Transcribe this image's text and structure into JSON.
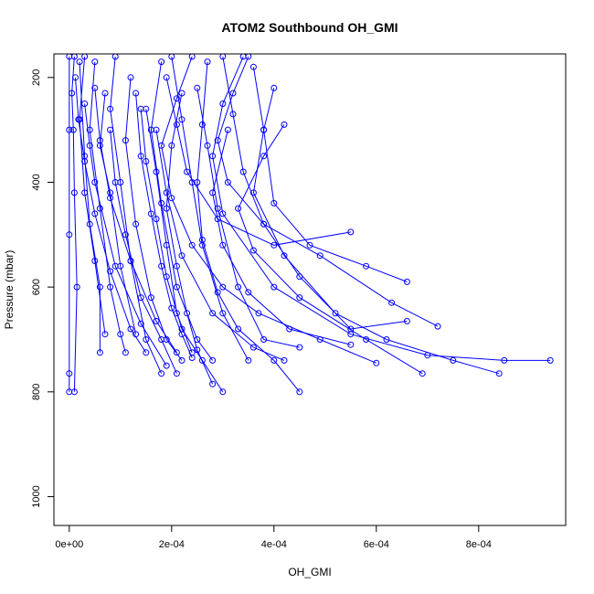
{
  "chart_data": {
    "type": "line",
    "title": "ATOM2 Southbound OH_GMI",
    "xlabel": "OH_GMI",
    "ylabel": "Pressure (mbar)",
    "xlim": [
      -3e-05,
      0.00097
    ],
    "ylim": [
      1055,
      155
    ],
    "y_reversed": true,
    "x_ticks": [
      {
        "value": 0.0,
        "label": "0e+00"
      },
      {
        "value": 0.0002,
        "label": "2e-04"
      },
      {
        "value": 0.0004,
        "label": "4e-04"
      },
      {
        "value": 0.0006,
        "label": "6e-04"
      },
      {
        "value": 0.0008,
        "label": "8e-04"
      }
    ],
    "y_ticks": [
      {
        "value": 200,
        "label": "200"
      },
      {
        "value": 400,
        "label": "400"
      },
      {
        "value": 600,
        "label": "600"
      },
      {
        "value": 800,
        "label": "800"
      },
      {
        "value": 1000,
        "label": "1000"
      }
    ],
    "series_color": "#0000ff",
    "marker": "open-circle",
    "series": [
      {
        "points": [
          [
            0.0,
            160
          ],
          [
            0.0,
            300
          ],
          [
            0.0,
            500
          ],
          [
            0.0,
            765
          ],
          [
            0.0,
            800
          ]
        ]
      },
      {
        "points": [
          [
            1e-05,
            160
          ],
          [
            5e-06,
            230
          ],
          [
            8e-06,
            300
          ],
          [
            1e-05,
            420
          ],
          [
            1.5e-05,
            600
          ],
          [
            1e-05,
            800
          ]
        ]
      },
      {
        "points": [
          [
            3e-05,
            160
          ],
          [
            2e-05,
            280
          ],
          [
            3e-05,
            420
          ],
          [
            5e-05,
            550
          ],
          [
            7e-05,
            690
          ]
        ]
      },
      {
        "points": [
          [
            5e-05,
            170
          ],
          [
            4e-05,
            300
          ],
          [
            6e-05,
            450
          ],
          [
            8e-05,
            600
          ],
          [
            0.0001,
            690
          ],
          [
            0.00011,
            725
          ]
        ]
      },
      {
        "points": [
          [
            2e-05,
            170
          ],
          [
            3e-05,
            350
          ],
          [
            4e-05,
            480
          ],
          [
            6e-05,
            600
          ],
          [
            6e-05,
            725
          ]
        ]
      },
      {
        "points": [
          [
            7e-05,
            230
          ],
          [
            6e-05,
            330
          ],
          [
            8e-05,
            420
          ],
          [
            0.0001,
            560
          ],
          [
            0.00013,
            690
          ]
        ]
      },
      {
        "points": [
          [
            9e-05,
            160
          ],
          [
            8e-05,
            260
          ],
          [
            0.0001,
            400
          ],
          [
            0.00012,
            550
          ],
          [
            0.00015,
            700
          ],
          [
            0.00018,
            765
          ]
        ]
      },
      {
        "points": [
          [
            0.00012,
            200
          ],
          [
            0.00011,
            320
          ],
          [
            0.00013,
            480
          ],
          [
            0.00016,
            620
          ],
          [
            0.00019,
            700
          ],
          [
            0.00022,
            740
          ]
        ]
      },
      {
        "points": [
          [
            0.00015,
            260
          ],
          [
            0.00017,
            380
          ],
          [
            0.00019,
            520
          ],
          [
            0.00021,
            650
          ],
          [
            0.00024,
            725
          ]
        ]
      },
      {
        "points": [
          [
            0.00018,
            170
          ],
          [
            0.00016,
            300
          ],
          [
            0.00018,
            440
          ],
          [
            0.00021,
            600
          ],
          [
            0.00025,
            700
          ],
          [
            0.00028,
            740
          ]
        ]
      },
      {
        "points": [
          [
            0.0002,
            160
          ],
          [
            0.00022,
            280
          ],
          [
            0.00024,
            400
          ],
          [
            0.00026,
            520
          ],
          [
            0.0003,
            650
          ],
          [
            0.00035,
            740
          ]
        ]
      },
      {
        "points": [
          [
            0.00025,
            220
          ],
          [
            0.00027,
            330
          ],
          [
            0.00029,
            450
          ],
          [
            0.00033,
            600
          ],
          [
            0.00038,
            700
          ],
          [
            0.00045,
            715
          ]
        ]
      },
      {
        "points": [
          [
            0.0003,
            160
          ],
          [
            0.00032,
            270
          ],
          [
            0.00034,
            380
          ],
          [
            0.00038,
            480
          ],
          [
            0.00045,
            580
          ],
          [
            0.00055,
            680
          ],
          [
            0.00066,
            665
          ]
        ]
      },
      {
        "points": [
          [
            0.00036,
            180
          ],
          [
            0.00038,
            300
          ],
          [
            0.0004,
            440
          ],
          [
            0.00047,
            520
          ],
          [
            0.00058,
            560
          ],
          [
            0.00066,
            590
          ]
        ]
      },
      {
        "points": [
          [
            0.00034,
            160
          ],
          [
            0.0003,
            250
          ],
          [
            0.00028,
            350
          ],
          [
            0.0003,
            460
          ],
          [
            0.0004,
            600
          ],
          [
            0.00055,
            690
          ],
          [
            0.0007,
            730
          ],
          [
            0.00085,
            740
          ],
          [
            0.00094,
            740
          ]
        ]
      },
      {
        "points": [
          [
            0.0004,
            220
          ],
          [
            0.00038,
            300
          ],
          [
            0.00036,
            420
          ],
          [
            0.00042,
            540
          ],
          [
            0.00052,
            650
          ],
          [
            0.00062,
            700
          ],
          [
            0.00075,
            740
          ],
          [
            0.00084,
            765
          ]
        ]
      },
      {
        "points": [
          [
            0.00022,
            230
          ],
          [
            0.0002,
            330
          ],
          [
            0.00019,
            450
          ],
          [
            0.00021,
            560
          ],
          [
            0.00023,
            650
          ],
          [
            0.00025,
            720
          ],
          [
            0.00028,
            785
          ]
        ]
      },
      {
        "points": [
          [
            0.00014,
            260
          ],
          [
            0.00015,
            360
          ],
          [
            0.00017,
            470
          ],
          [
            0.00019,
            580
          ],
          [
            0.00022,
            680
          ],
          [
            0.00026,
            740
          ],
          [
            0.0003,
            800
          ]
        ]
      },
      {
        "points": [
          [
            8e-05,
            300
          ],
          [
            9e-05,
            400
          ],
          [
            0.00011,
            500
          ],
          [
            0.00014,
            620
          ],
          [
            0.00018,
            700
          ],
          [
            0.00021,
            765
          ]
        ]
      },
      {
        "points": [
          [
            0.00027,
            170
          ],
          [
            0.00026,
            290
          ],
          [
            0.00025,
            400
          ],
          [
            0.00026,
            510
          ],
          [
            0.00029,
            610
          ],
          [
            0.00033,
            680
          ],
          [
            0.0004,
            740
          ],
          [
            0.00045,
            800
          ]
        ]
      },
      {
        "points": [
          [
            0.00017,
            300
          ],
          [
            0.00019,
            420
          ],
          [
            0.00022,
            540
          ],
          [
            0.00028,
            650
          ],
          [
            0.00036,
            715
          ],
          [
            0.00042,
            740
          ]
        ]
      },
      {
        "points": [
          [
            0.00042,
            290
          ],
          [
            0.00038,
            350
          ],
          [
            0.00033,
            450
          ],
          [
            0.00036,
            530
          ],
          [
            0.00045,
            620
          ],
          [
            0.00058,
            700
          ],
          [
            0.00069,
            765
          ]
        ]
      },
      {
        "points": [
          [
            5e-05,
            220
          ],
          [
            6e-05,
            320
          ],
          [
            8e-05,
            430
          ],
          [
            0.00012,
            550
          ],
          [
            0.00017,
            665
          ],
          [
            0.00021,
            725
          ]
        ]
      },
      {
        "points": [
          [
            3e-05,
            250
          ],
          [
            4e-05,
            330
          ],
          [
            5e-05,
            400
          ],
          [
            9e-05,
            560
          ],
          [
            0.00014,
            670
          ],
          [
            0.00019,
            750
          ]
        ]
      },
      {
        "points": [
          [
            0.00024,
            160
          ],
          [
            0.00021,
            240
          ],
          [
            0.00018,
            330
          ],
          [
            0.0002,
            430
          ],
          [
            0.00024,
            520
          ],
          [
            0.0003,
            600
          ],
          [
            0.00037,
            650
          ],
          [
            0.00049,
            700
          ],
          [
            0.0006,
            745
          ]
        ]
      },
      {
        "points": [
          [
            0.00031,
            300
          ],
          [
            0.00028,
            420
          ],
          [
            0.0003,
            520
          ],
          [
            0.00035,
            610
          ],
          [
            0.00043,
            680
          ],
          [
            0.00055,
            710
          ]
        ]
      },
      {
        "points": [
          [
            1.2e-05,
            200
          ],
          [
            1.8e-05,
            280
          ],
          [
            3e-05,
            360
          ],
          [
            5e-05,
            460
          ],
          [
            8e-05,
            570
          ],
          [
            0.00012,
            680
          ],
          [
            0.00015,
            725
          ]
        ]
      },
      {
        "points": [
          [
            0.00019,
            200
          ],
          [
            0.00021,
            290
          ],
          [
            0.00023,
            380
          ],
          [
            0.00029,
            470
          ],
          [
            0.0004,
            520
          ],
          [
            0.00055,
            495
          ]
        ]
      },
      {
        "points": [
          [
            0.00013,
            230
          ],
          [
            0.00014,
            350
          ],
          [
            0.00016,
            460
          ],
          [
            0.00018,
            560
          ],
          [
            0.0002,
            640
          ],
          [
            0.00022,
            690
          ],
          [
            0.00024,
            735
          ]
        ]
      },
      {
        "points": [
          [
            0.00035,
            160
          ],
          [
            0.00032,
            230
          ],
          [
            0.00029,
            320
          ],
          [
            0.00031,
            400
          ],
          [
            0.00038,
            480
          ],
          [
            0.00049,
            540
          ],
          [
            0.00063,
            630
          ],
          [
            0.00072,
            675
          ]
        ]
      }
    ]
  }
}
